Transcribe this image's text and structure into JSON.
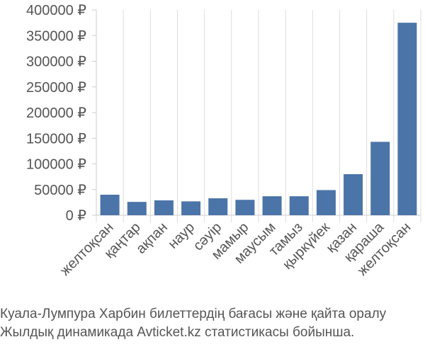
{
  "chart_data": {
    "type": "bar",
    "categories": [
      "желтоқсан",
      "қаңтар",
      "ақпан",
      "наур",
      "сәуір",
      "мамыр",
      "маусым",
      "тамыз",
      "қыркүйек",
      "қазан",
      "қараша",
      "желтоқсан"
    ],
    "values": [
      40000,
      26000,
      29000,
      27000,
      33000,
      30000,
      37000,
      37000,
      49000,
      80000,
      143000,
      375000
    ],
    "y_ticks": [
      "0 ₽",
      "50000 ₽",
      "100000 ₽",
      "150000 ₽",
      "200000 ₽",
      "250000 ₽",
      "300000 ₽",
      "350000 ₽",
      "400000 ₽"
    ],
    "ylim": [
      0,
      400000
    ],
    "title": "",
    "xlabel": "",
    "ylabel": "",
    "grid": "vertical",
    "bar_color": "#4b74a8"
  },
  "caption": {
    "line1": "Куала-Лумпура Харбин билеттердің бағасы және қайта оралу",
    "line2": "Жылдық динамикада Avticket.kz статистикасы бойынша."
  }
}
